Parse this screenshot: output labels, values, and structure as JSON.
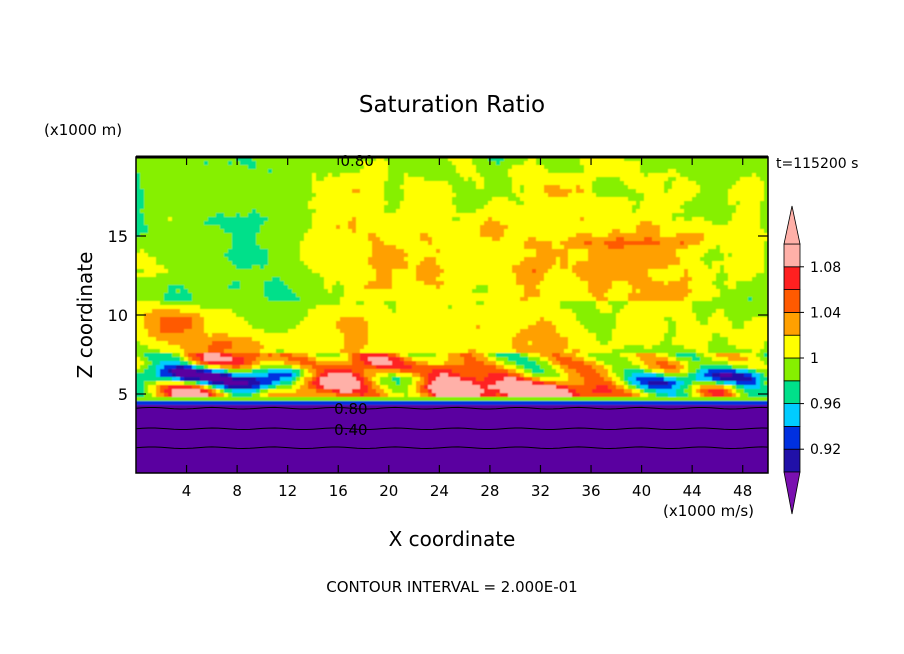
{
  "chart_data": {
    "type": "heatmap",
    "title": "Saturation Ratio",
    "xlabel": "X coordinate",
    "ylabel": "Z coordinate",
    "x_unit": "(x1000 m/s)",
    "y_unit": "(x1000 m)",
    "time_label": "t=115200 s",
    "contour_note": "CONTOUR INTERVAL = 2.000E-01",
    "xlim": [
      0,
      50
    ],
    "ylim": [
      0,
      20
    ],
    "x_ticks": [
      4,
      8,
      12,
      16,
      20,
      24,
      28,
      32,
      36,
      40,
      44,
      48
    ],
    "y_ticks": [
      5,
      10,
      15
    ],
    "contour_labels": [
      {
        "text": "0.80",
        "x": 17.5,
        "z": 19.8
      },
      {
        "text": "0.80",
        "x": 17,
        "z": 4.1
      },
      {
        "text": "0.40",
        "x": 17,
        "z": 2.8
      }
    ],
    "colorbar": {
      "levels": [
        0.9,
        0.92,
        0.94,
        0.96,
        0.98,
        1.0,
        1.02,
        1.04,
        1.06,
        1.08,
        1.1
      ],
      "tick_labels": [
        "1.08",
        "1.04",
        "1",
        "0.96",
        "0.92"
      ],
      "colors": [
        "#5a00a0",
        "#2010a8",
        "#0030e0",
        "#00ccff",
        "#00e08a",
        "#86f000",
        "#ffff00",
        "#ffa000",
        "#ff5a00",
        "#ff2020",
        "#ffb0a8",
        "#7a10b0"
      ]
    }
  }
}
